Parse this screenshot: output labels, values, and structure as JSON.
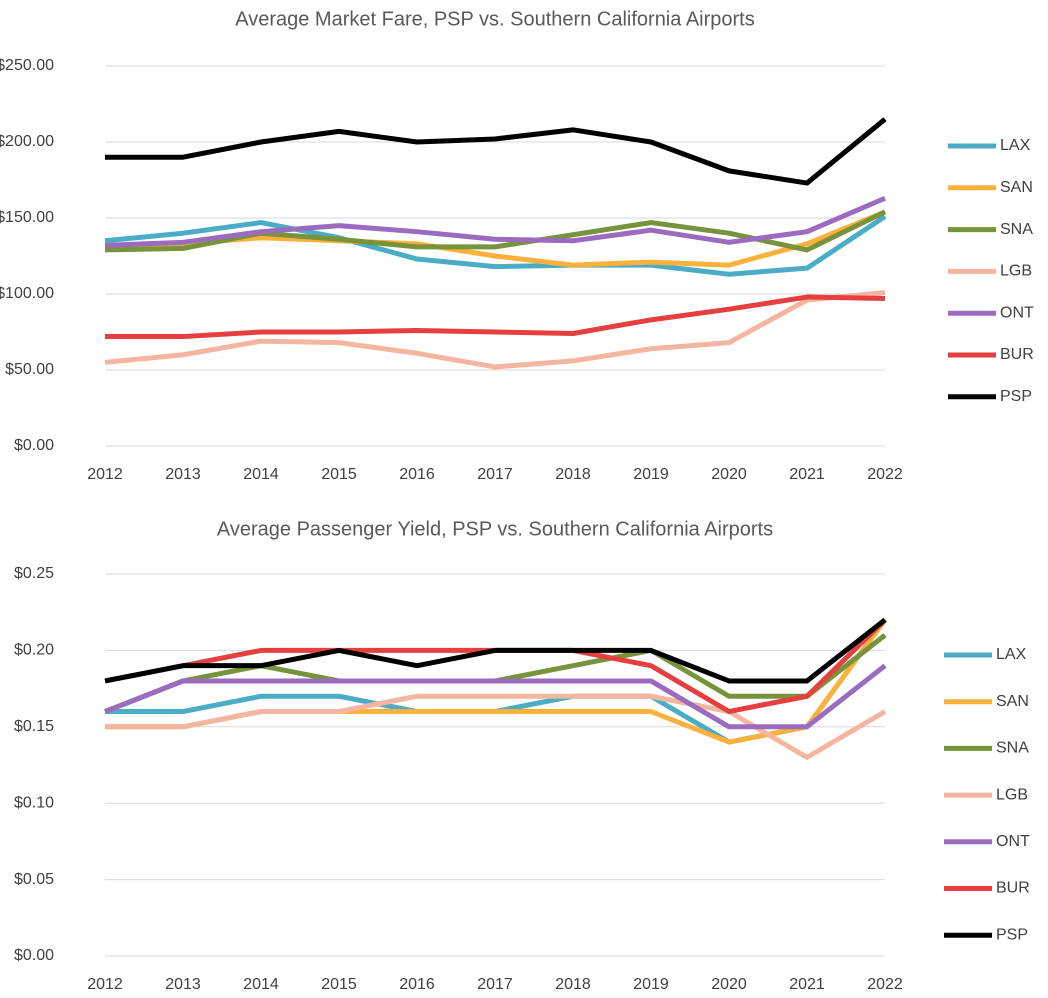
{
  "chart_data": [
    {
      "type": "line",
      "title": "Average Market Fare, PSP vs. Southern California Airports",
      "categories": [
        "2012",
        "2013",
        "2014",
        "2015",
        "2016",
        "2017",
        "2018",
        "2019",
        "2020",
        "2021",
        "2022"
      ],
      "ylim": [
        0,
        250
      ],
      "yticks": [
        {
          "value": 0,
          "label": "$0.00"
        },
        {
          "value": 50,
          "label": "$50.00"
        },
        {
          "value": 100,
          "label": "$100.00"
        },
        {
          "value": 150,
          "label": "$150.00"
        },
        {
          "value": 200,
          "label": "$200.00"
        },
        {
          "value": 250,
          "label": "$250.00"
        }
      ],
      "grid": true,
      "legend": "right",
      "series": [
        {
          "name": "LAX",
          "color": "#4bacc6",
          "values": [
            135,
            140,
            147,
            137,
            123,
            118,
            119,
            119,
            113,
            117,
            151
          ]
        },
        {
          "name": "SAN",
          "color": "#fbb13c",
          "values": [
            131,
            133,
            137,
            135,
            133,
            125,
            119,
            121,
            119,
            133,
            154
          ]
        },
        {
          "name": "SNA",
          "color": "#77933c",
          "values": [
            129,
            130,
            140,
            136,
            131,
            131,
            139,
            147,
            140,
            129,
            154
          ]
        },
        {
          "name": "LGB",
          "color": "#f4b6a0",
          "values": [
            55,
            60,
            69,
            68,
            61,
            52,
            56,
            64,
            68,
            96,
            101
          ]
        },
        {
          "name": "ONT",
          "color": "#9b6bbf",
          "values": [
            132,
            134,
            141,
            145,
            141,
            136,
            135,
            142,
            134,
            141,
            163
          ]
        },
        {
          "name": "BUR",
          "color": "#e5403f",
          "values": [
            72,
            72,
            75,
            75,
            76,
            75,
            74,
            83,
            90,
            98,
            97
          ]
        },
        {
          "name": "PSP",
          "color": "#000000",
          "values": [
            190,
            190,
            200,
            207,
            200,
            202,
            208,
            200,
            181,
            173,
            215
          ]
        }
      ]
    },
    {
      "type": "line",
      "title": "Average Passenger Yield, PSP vs. Southern California Airports",
      "categories": [
        "2012",
        "2013",
        "2014",
        "2015",
        "2016",
        "2017",
        "2018",
        "2019",
        "2020",
        "2021",
        "2022"
      ],
      "ylim": [
        0,
        0.25
      ],
      "yticks": [
        {
          "value": 0,
          "label": "$0.00"
        },
        {
          "value": 0.05,
          "label": "$0.05"
        },
        {
          "value": 0.1,
          "label": "$0.10"
        },
        {
          "value": 0.15,
          "label": "$0.15"
        },
        {
          "value": 0.2,
          "label": "$0.20"
        },
        {
          "value": 0.25,
          "label": "$0.25"
        }
      ],
      "grid": true,
      "legend": "right",
      "series": [
        {
          "name": "LAX",
          "color": "#4bacc6",
          "values": [
            0.16,
            0.16,
            0.17,
            0.17,
            0.16,
            0.16,
            0.17,
            0.17,
            0.14,
            0.15,
            0.22
          ]
        },
        {
          "name": "SAN",
          "color": "#fbb13c",
          "values": [
            0.15,
            0.15,
            0.16,
            0.16,
            0.16,
            0.16,
            0.16,
            0.16,
            0.14,
            0.15,
            0.22
          ]
        },
        {
          "name": "SNA",
          "color": "#77933c",
          "values": [
            0.16,
            0.18,
            0.19,
            0.18,
            0.18,
            0.18,
            0.19,
            0.2,
            0.17,
            0.17,
            0.21
          ]
        },
        {
          "name": "LGB",
          "color": "#f4b6a0",
          "values": [
            0.15,
            0.15,
            0.16,
            0.16,
            0.17,
            0.17,
            0.17,
            0.17,
            0.16,
            0.13,
            0.16
          ]
        },
        {
          "name": "ONT",
          "color": "#9b6bbf",
          "values": [
            0.16,
            0.18,
            0.18,
            0.18,
            0.18,
            0.18,
            0.18,
            0.18,
            0.15,
            0.15,
            0.19
          ]
        },
        {
          "name": "BUR",
          "color": "#e5403f",
          "values": [
            0.18,
            0.19,
            0.2,
            0.2,
            0.2,
            0.2,
            0.2,
            0.19,
            0.16,
            0.17,
            0.22
          ]
        },
        {
          "name": "PSP",
          "color": "#000000",
          "values": [
            0.18,
            0.19,
            0.19,
            0.2,
            0.19,
            0.2,
            0.2,
            0.2,
            0.18,
            0.18,
            0.22
          ]
        }
      ]
    }
  ]
}
